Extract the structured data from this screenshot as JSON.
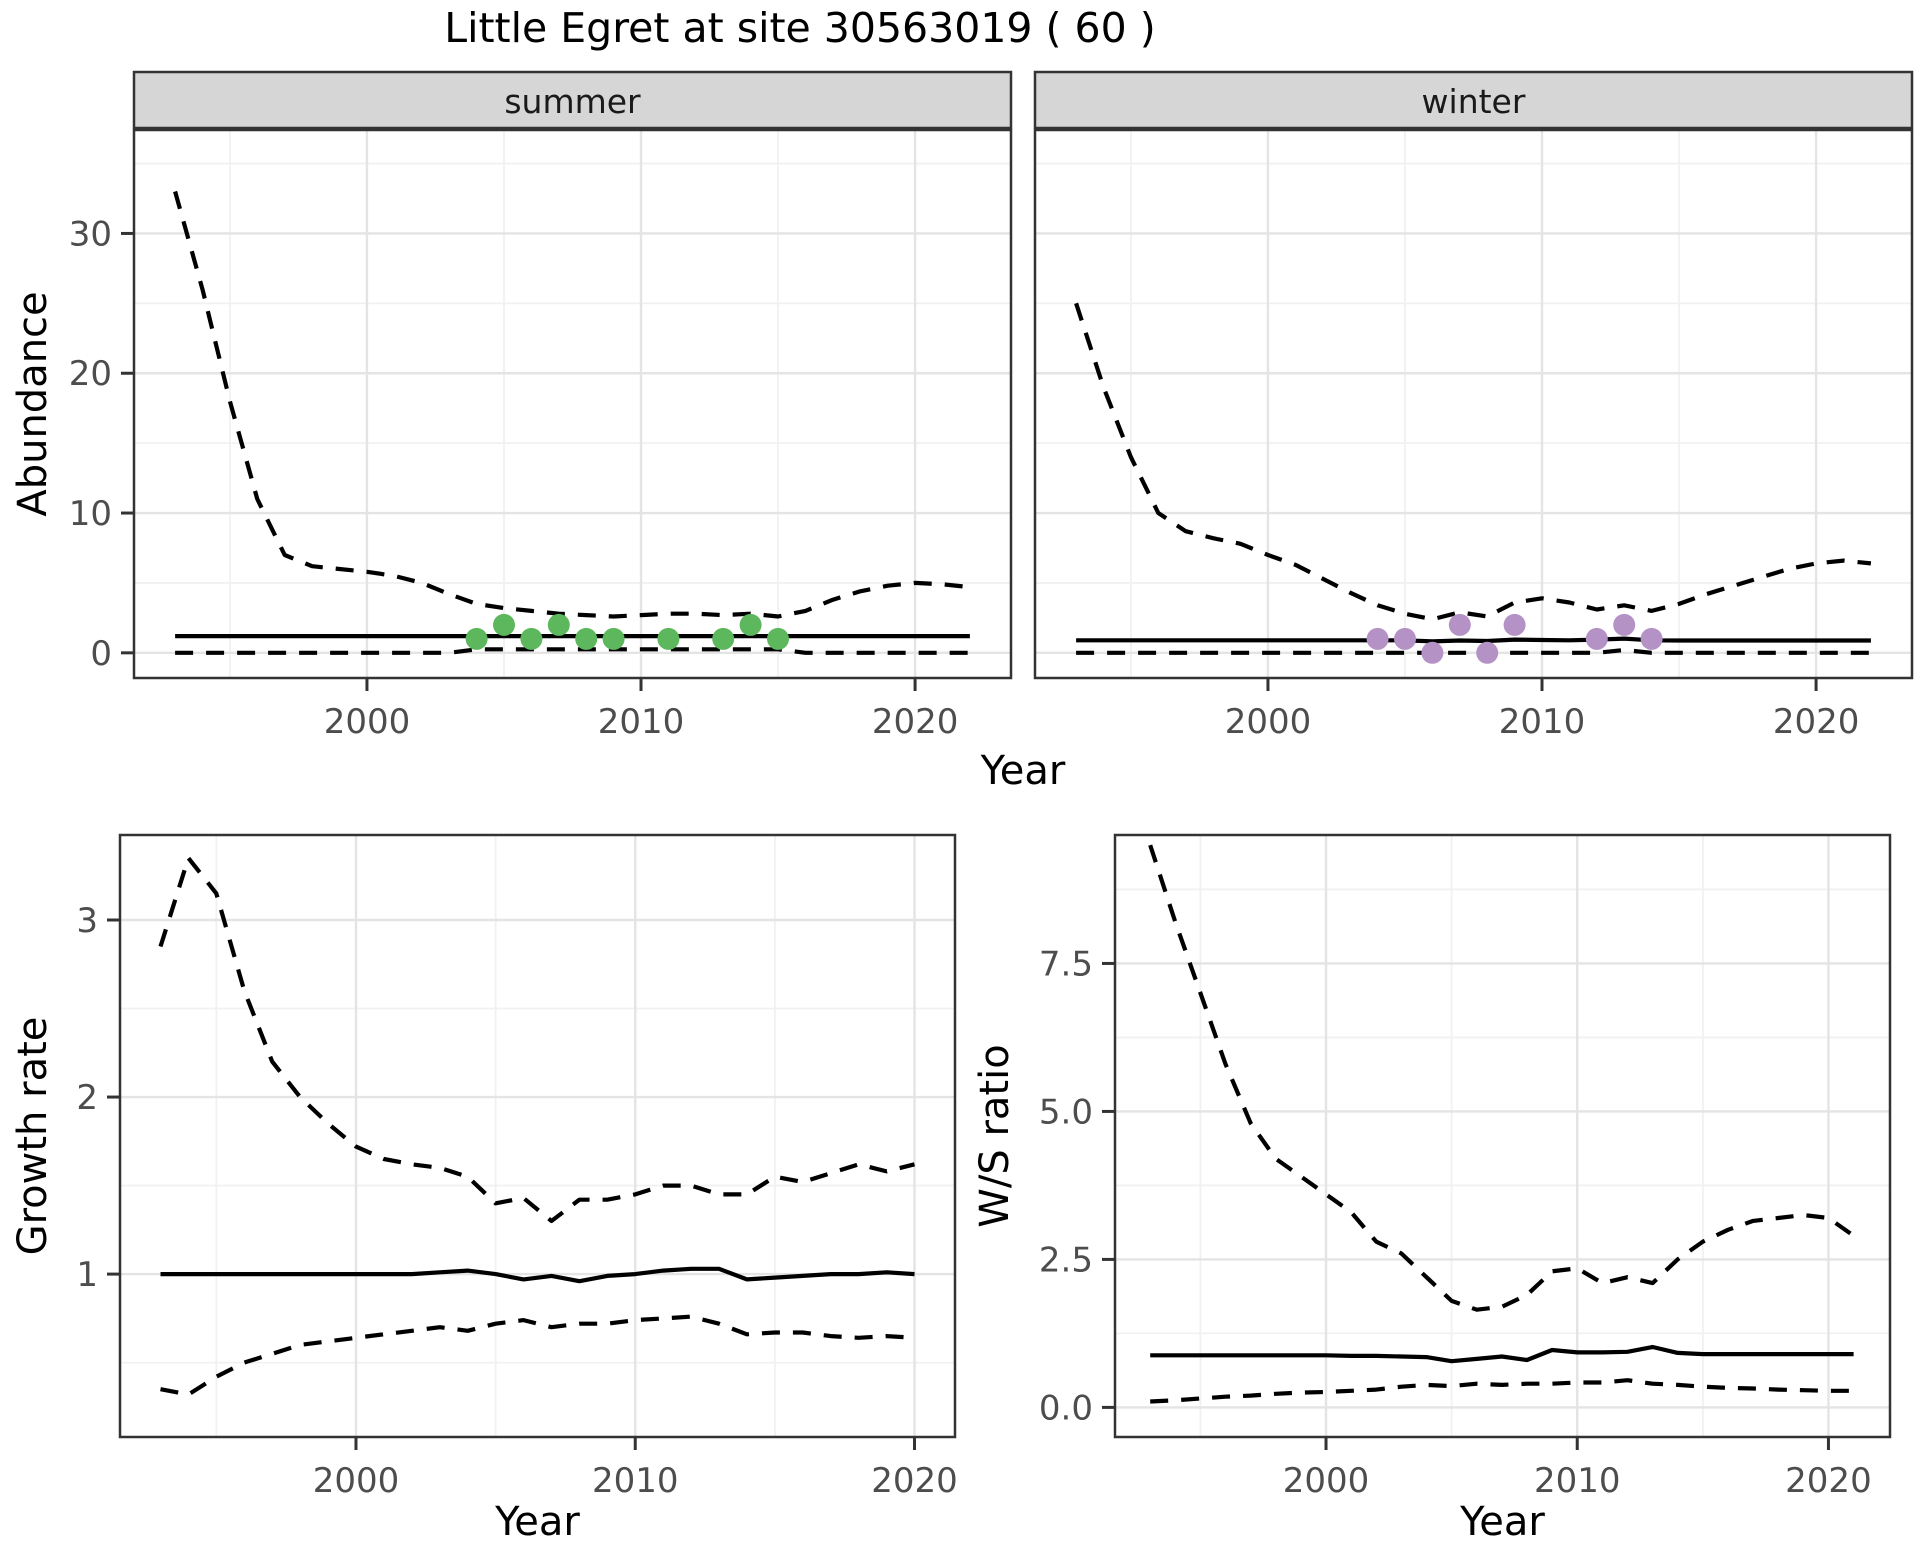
{
  "title": "Little Egret at site 30563019 ( 60 )",
  "colors": {
    "summer_point": "#5db75c",
    "winter_point": "#b592c6",
    "strip_bg": "#d6d6d6",
    "strip_text": "#1a1a1a",
    "line": "#000000",
    "axis_text": "#4d4d4d",
    "panel_border": "#333333",
    "grid_major": "#e4e4e4",
    "grid_minor": "#f1f1f1"
  },
  "chart_data": [
    {
      "id": "abundance-summer",
      "type": "line",
      "facet": "summer",
      "ylabel": "Abundance",
      "xlabel": "Year",
      "x": [
        1993,
        1994,
        1995,
        1996,
        1997,
        1998,
        1999,
        2000,
        2001,
        2002,
        2003,
        2004,
        2005,
        2006,
        2007,
        2008,
        2009,
        2010,
        2011,
        2012,
        2013,
        2014,
        2015,
        2016,
        2017,
        2018,
        2019,
        2020,
        2021,
        2022
      ],
      "series": {
        "mean": [
          1.2,
          1.2,
          1.2,
          1.2,
          1.2,
          1.2,
          1.2,
          1.2,
          1.2,
          1.2,
          1.2,
          1.2,
          1.2,
          1.2,
          1.2,
          1.2,
          1.2,
          1.2,
          1.2,
          1.2,
          1.2,
          1.2,
          1.2,
          1.2,
          1.2,
          1.2,
          1.2,
          1.2,
          1.2,
          1.2
        ],
        "upper": [
          33,
          26,
          18,
          11,
          7,
          6.2,
          6.0,
          5.8,
          5.5,
          5.0,
          4.2,
          3.5,
          3.2,
          3.0,
          2.8,
          2.7,
          2.6,
          2.7,
          2.8,
          2.8,
          2.7,
          2.8,
          2.6,
          3.0,
          3.8,
          4.4,
          4.8,
          5.0,
          4.9,
          4.7
        ],
        "lower": [
          0,
          0,
          0,
          0,
          0,
          0,
          0,
          0,
          0,
          0,
          0,
          0.25,
          0.25,
          0.25,
          0.25,
          0.25,
          0.25,
          0.25,
          0.25,
          0.25,
          0.25,
          0.25,
          0.25,
          0,
          0,
          0,
          0,
          0,
          0,
          0
        ]
      },
      "points": [
        [
          2004,
          1
        ],
        [
          2005,
          2
        ],
        [
          2006,
          1
        ],
        [
          2007,
          2
        ],
        [
          2008,
          1
        ],
        [
          2009,
          1
        ],
        [
          2011,
          1
        ],
        [
          2013,
          1
        ],
        [
          2014,
          2
        ],
        [
          2015,
          1
        ]
      ],
      "point_color": "#5db75c",
      "y_ticks": [
        0,
        10,
        20,
        30
      ],
      "y_tick_labels": [
        "0",
        "10",
        "20",
        "30"
      ],
      "y_minor": [
        5,
        15,
        25,
        35
      ],
      "x_ticks": [
        2000,
        2010,
        2020
      ],
      "x_tick_labels": [
        "2000",
        "2010",
        "2020"
      ],
      "x_minor": [
        1995,
        2005,
        2015
      ],
      "xlim": [
        1991.5,
        2023.5
      ],
      "ylim": [
        -1.8,
        37.4
      ],
      "grid": "on",
      "legend": "none"
    },
    {
      "id": "abundance-winter",
      "type": "line",
      "facet": "winter",
      "ylabel": "Abundance",
      "xlabel": "Year",
      "x": [
        1993,
        1994,
        1995,
        1996,
        1997,
        1998,
        1999,
        2000,
        2001,
        2002,
        2003,
        2004,
        2005,
        2006,
        2007,
        2008,
        2009,
        2010,
        2011,
        2012,
        2013,
        2014,
        2015,
        2016,
        2017,
        2018,
        2019,
        2020,
        2021,
        2022
      ],
      "series": {
        "mean": [
          0.9,
          0.9,
          0.9,
          0.9,
          0.9,
          0.9,
          0.9,
          0.9,
          0.9,
          0.9,
          0.9,
          0.9,
          0.9,
          0.82,
          0.88,
          0.85,
          0.95,
          0.92,
          0.9,
          0.95,
          1.02,
          0.9,
          0.88,
          0.88,
          0.88,
          0.88,
          0.88,
          0.88,
          0.88,
          0.88
        ],
        "upper": [
          25,
          19,
          14,
          10,
          8.7,
          8.2,
          7.8,
          7.0,
          6.3,
          5.3,
          4.3,
          3.4,
          2.8,
          2.4,
          2.9,
          2.6,
          3.6,
          3.9,
          3.6,
          3.1,
          3.4,
          3.0,
          3.5,
          4.2,
          4.8,
          5.4,
          6.0,
          6.4,
          6.6,
          6.4
        ],
        "lower": [
          0,
          0,
          0,
          0,
          0,
          0,
          0,
          0,
          0,
          0,
          0,
          0,
          0,
          0,
          0,
          0,
          0,
          0,
          0,
          0,
          0.2,
          0,
          0,
          0,
          0,
          0,
          0,
          0,
          0,
          0
        ]
      },
      "points": [
        [
          2004,
          1
        ],
        [
          2005,
          1
        ],
        [
          2006,
          0
        ],
        [
          2007,
          2
        ],
        [
          2008,
          0
        ],
        [
          2009,
          2
        ],
        [
          2012,
          1
        ],
        [
          2013,
          2
        ],
        [
          2014,
          1
        ]
      ],
      "point_color": "#b592c6",
      "y_ticks": [
        0,
        10,
        20,
        30
      ],
      "y_tick_labels": [
        "0",
        "10",
        "20",
        "30"
      ],
      "y_minor": [
        5,
        15,
        25,
        35
      ],
      "x_ticks": [
        2000,
        2010,
        2020
      ],
      "x_tick_labels": [
        "2000",
        "2010",
        "2020"
      ],
      "x_minor": [
        1995,
        2005,
        2015
      ],
      "xlim": [
        1991.5,
        2023.5
      ],
      "ylim": [
        -1.8,
        37.4
      ],
      "grid": "on",
      "legend": "none"
    },
    {
      "id": "growth-rate",
      "type": "line",
      "facet": "",
      "ylabel": "Growth rate",
      "xlabel": "Year",
      "x": [
        1993,
        1994,
        1995,
        1996,
        1997,
        1998,
        1999,
        2000,
        2001,
        2002,
        2003,
        2004,
        2005,
        2006,
        2007,
        2008,
        2009,
        2010,
        2011,
        2012,
        2013,
        2014,
        2015,
        2016,
        2017,
        2018,
        2019,
        2020
      ],
      "series": {
        "mean": [
          1.0,
          1.0,
          1.0,
          1.0,
          1.0,
          1.0,
          1.0,
          1.0,
          1.0,
          1.0,
          1.01,
          1.02,
          1.0,
          0.97,
          0.99,
          0.96,
          0.99,
          1.0,
          1.02,
          1.03,
          1.03,
          0.97,
          0.98,
          0.99,
          1.0,
          1.0,
          1.01,
          1.0
        ],
        "upper": [
          2.85,
          3.35,
          3.15,
          2.6,
          2.2,
          2.0,
          1.85,
          1.72,
          1.65,
          1.62,
          1.6,
          1.55,
          1.4,
          1.43,
          1.3,
          1.42,
          1.42,
          1.45,
          1.5,
          1.5,
          1.45,
          1.45,
          1.55,
          1.52,
          1.57,
          1.62,
          1.58,
          1.62
        ],
        "lower": [
          0.35,
          0.32,
          0.42,
          0.5,
          0.55,
          0.6,
          0.62,
          0.64,
          0.66,
          0.68,
          0.7,
          0.68,
          0.72,
          0.74,
          0.7,
          0.72,
          0.72,
          0.74,
          0.75,
          0.76,
          0.72,
          0.66,
          0.67,
          0.67,
          0.65,
          0.64,
          0.65,
          0.64
        ]
      },
      "points": [],
      "point_color": "#000000",
      "y_ticks": [
        1,
        2,
        3
      ],
      "y_tick_labels": [
        "1",
        "2",
        "3"
      ],
      "y_minor": [
        0.5,
        1.5,
        2.5,
        3.5
      ],
      "x_ticks": [
        2000,
        2010,
        2020
      ],
      "x_tick_labels": [
        "2000",
        "2010",
        "2020"
      ],
      "x_minor": [
        1995,
        2005,
        2015
      ],
      "xlim": [
        1991.55,
        2021.45
      ],
      "ylim": [
        0.08,
        3.48
      ],
      "grid": "on",
      "legend": "none"
    },
    {
      "id": "ws-ratio",
      "type": "line",
      "facet": "",
      "ylabel": "W/S ratio",
      "xlabel": "Year",
      "x": [
        1993,
        1994,
        1995,
        1996,
        1997,
        1998,
        1999,
        2000,
        2001,
        2002,
        2003,
        2004,
        2005,
        2006,
        2007,
        2008,
        2009,
        2010,
        2011,
        2012,
        2013,
        2014,
        2015,
        2016,
        2017,
        2018,
        2019,
        2020,
        2021
      ],
      "series": {
        "mean": [
          0.88,
          0.88,
          0.88,
          0.88,
          0.88,
          0.88,
          0.88,
          0.88,
          0.87,
          0.87,
          0.86,
          0.85,
          0.78,
          0.82,
          0.86,
          0.8,
          0.97,
          0.93,
          0.93,
          0.94,
          1.02,
          0.92,
          0.9,
          0.9,
          0.9,
          0.9,
          0.9,
          0.9,
          0.9
        ],
        "upper": [
          9.5,
          8.2,
          7.0,
          5.8,
          4.8,
          4.2,
          3.9,
          3.6,
          3.3,
          2.8,
          2.6,
          2.2,
          1.8,
          1.65,
          1.7,
          1.9,
          2.3,
          2.35,
          2.1,
          2.2,
          2.1,
          2.5,
          2.8,
          3.0,
          3.15,
          3.2,
          3.25,
          3.2,
          2.9
        ],
        "lower": [
          0.1,
          0.12,
          0.15,
          0.18,
          0.2,
          0.23,
          0.25,
          0.26,
          0.28,
          0.3,
          0.35,
          0.38,
          0.36,
          0.4,
          0.38,
          0.4,
          0.4,
          0.42,
          0.42,
          0.46,
          0.4,
          0.38,
          0.35,
          0.33,
          0.32,
          0.3,
          0.29,
          0.28,
          0.28
        ]
      },
      "points": [],
      "point_color": "#000000",
      "y_ticks": [
        0,
        2.5,
        5,
        7.5
      ],
      "y_tick_labels": [
        "0.0",
        "2.5",
        "5.0",
        "7.5"
      ],
      "y_minor": [
        1.25,
        3.75,
        6.25,
        8.75
      ],
      "x_ticks": [
        2000,
        2010,
        2020
      ],
      "x_tick_labels": [
        "2000",
        "2010",
        "2020"
      ],
      "x_minor": [
        1995,
        2005,
        2015
      ],
      "xlim": [
        1991.6,
        2022.45
      ],
      "ylim": [
        -0.5,
        9.67
      ],
      "grid": "on",
      "legend": "none"
    }
  ]
}
